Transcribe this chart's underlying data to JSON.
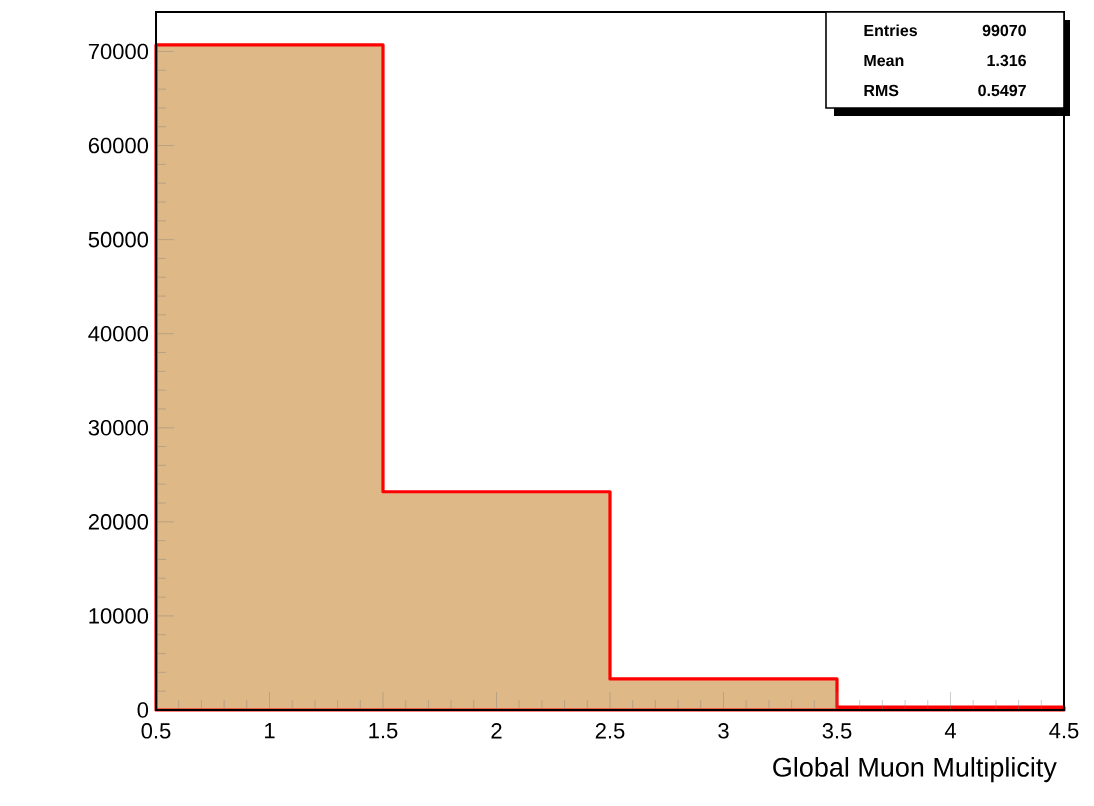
{
  "chart_data": {
    "type": "histogram",
    "xlabel": "Global Muon Multiplicity",
    "bins": [
      0.5,
      1.5,
      2.5,
      3.5,
      4.5
    ],
    "values": [
      70700,
      23200,
      3300,
      300
    ],
    "color": "#deb887",
    "xlim": [
      0.5,
      4.5
    ],
    "ylim": [
      0,
      74200
    ],
    "xticks": [
      0.5,
      1,
      1.5,
      2,
      2.5,
      3,
      3.5,
      4,
      4.5
    ],
    "yticks": [
      0,
      10000,
      20000,
      30000,
      40000,
      50000,
      60000,
      70000
    ],
    "annotations": [
      "Entries",
      "99070",
      "Mean",
      "1.316",
      "RMS",
      "0.5497"
    ],
    "grid": false
  }
}
